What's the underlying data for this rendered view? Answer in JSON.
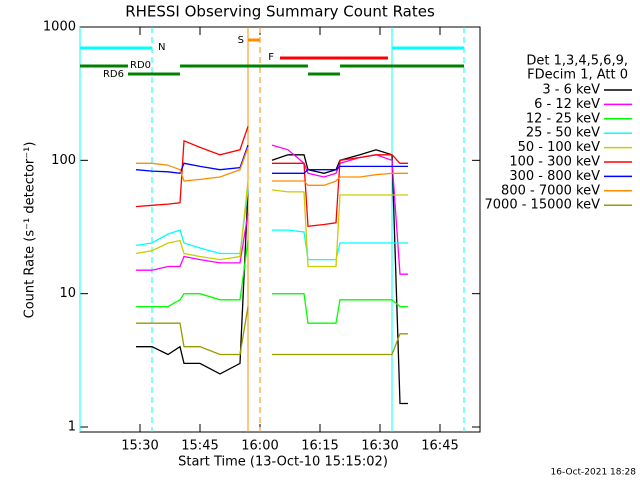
{
  "chart_data": {
    "type": "line",
    "title": "RHESSI Observing Summary Count Rates",
    "xlabel": "Start Time (13-Oct-10 15:15:02)",
    "ylabel": "Count Rate (s⁻¹ detector⁻¹)",
    "footer": "16-Oct-2021 18:28",
    "legend_header": [
      "Det 1,3,4,5,6,9,",
      "FDecim 1, Att 0"
    ],
    "legend_position": "right",
    "log_y": true,
    "x": [
      "15:29",
      "15:33",
      "15:37",
      "15:40",
      "15:41",
      "15:45",
      "15:50",
      "15:55",
      "15:57",
      "16:00",
      "16:03",
      "16:07",
      "16:11",
      "16:12",
      "16:16",
      "16:19",
      "16:20",
      "16:25",
      "16:29",
      "16:33",
      "16:35",
      "16:37"
    ],
    "xlim": [
      "15:15",
      "16:55"
    ],
    "xticks": [
      "15:30",
      "15:45",
      "16:00",
      "16:15",
      "16:30",
      "16:45"
    ],
    "ylim": [
      1,
      1000
    ],
    "yticks": [
      1,
      10,
      100,
      1000
    ],
    "series": [
      {
        "name": "3 - 6 keV",
        "color": "#000000",
        "values": [
          4,
          4,
          3.5,
          4,
          3,
          3,
          2.5,
          3,
          60,
          null,
          100,
          110,
          110,
          85,
          80,
          85,
          100,
          110,
          120,
          110,
          1.5,
          1.5
        ]
      },
      {
        "name": "6 - 12 keV",
        "color": "#ff00ff",
        "values": [
          15,
          15,
          16,
          16,
          19,
          18,
          17,
          17,
          40,
          null,
          130,
          120,
          95,
          80,
          75,
          80,
          95,
          105,
          110,
          100,
          14,
          14
        ]
      },
      {
        "name": "12 - 25 keV",
        "color": "#00ff00",
        "values": [
          8,
          8,
          8,
          9,
          10,
          10,
          9,
          9,
          25,
          null,
          10,
          10,
          10,
          6,
          6,
          6,
          9,
          9,
          9,
          9,
          8,
          8
        ]
      },
      {
        "name": "25 - 50 keV",
        "color": "#00ffff",
        "values": [
          23,
          24,
          28,
          30,
          24,
          22,
          20,
          20,
          60,
          null,
          30,
          30,
          29,
          18,
          18,
          18,
          24,
          24,
          24,
          24,
          24,
          24
        ]
      },
      {
        "name": "50 - 100 keV",
        "color": "#cccc00",
        "values": [
          20,
          21,
          24,
          25,
          20,
          19,
          18,
          19,
          70,
          null,
          60,
          58,
          58,
          16,
          16,
          16,
          55,
          55,
          55,
          55,
          55,
          55
        ]
      },
      {
        "name": "100 - 300 keV",
        "color": "#ff0000",
        "values": [
          45,
          46,
          47,
          48,
          140,
          125,
          110,
          120,
          180,
          null,
          95,
          95,
          95,
          32,
          33,
          34,
          100,
          105,
          110,
          110,
          95,
          95
        ]
      },
      {
        "name": "300 - 800 keV",
        "color": "#0000ff",
        "values": [
          85,
          83,
          82,
          80,
          95,
          90,
          85,
          88,
          130,
          null,
          80,
          80,
          80,
          85,
          85,
          85,
          90,
          90,
          90,
          90,
          90,
          90
        ]
      },
      {
        "name": "800 - 7000 keV",
        "color": "#ff8c00",
        "values": [
          95,
          95,
          92,
          85,
          70,
          72,
          75,
          85,
          125,
          null,
          70,
          70,
          70,
          65,
          65,
          70,
          75,
          75,
          78,
          80,
          80,
          80
        ]
      },
      {
        "name": "7000 - 15000 keV",
        "color": "#999900",
        "values": [
          6,
          6,
          6,
          6,
          4,
          4,
          3.5,
          3.5,
          8,
          null,
          3.5,
          3.5,
          3.5,
          3.5,
          3.5,
          3.5,
          3.5,
          3.5,
          3.5,
          3.5,
          5,
          5
        ]
      }
    ],
    "flags": [
      {
        "label": "N",
        "color": "#00ffff",
        "vertical_lines": true,
        "intervals": [
          [
            "15:15",
            "15:33"
          ],
          [
            "16:33",
            "16:51"
          ]
        ]
      },
      {
        "label": "S",
        "color": "#ff8c00",
        "vertical_lines": true,
        "intervals": [
          [
            "15:57",
            "16:00"
          ]
        ]
      },
      {
        "label": "F",
        "color": "#ff0000",
        "vertical_lines": false,
        "intervals": [
          [
            "16:05",
            "16:32"
          ]
        ]
      },
      {
        "label": "RD0",
        "color": "#008000",
        "vertical_lines": false,
        "intervals": [
          [
            "15:15",
            "15:27"
          ],
          [
            "15:40",
            "16:12"
          ],
          [
            "16:20",
            "16:51"
          ]
        ]
      },
      {
        "label": "RD6",
        "color": "#008000",
        "vertical_lines": false,
        "intervals": [
          [
            "15:27",
            "15:40"
          ],
          [
            "16:12",
            "16:20"
          ]
        ]
      }
    ]
  }
}
